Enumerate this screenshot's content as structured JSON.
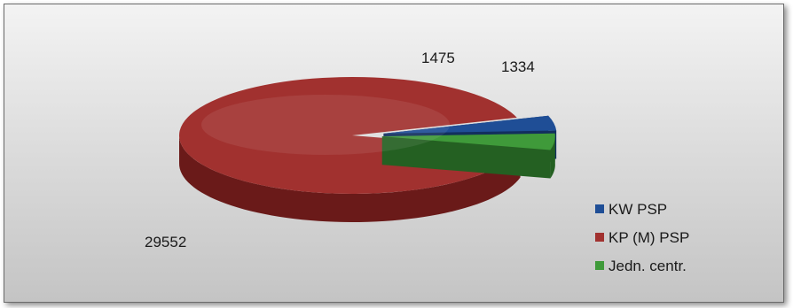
{
  "chart_data": {
    "type": "pie",
    "title": "",
    "legend_position": "right",
    "slices": [
      {
        "label": "KW PSP",
        "value": 1334,
        "color": "#1f4e96",
        "side_color": "#122f5e"
      },
      {
        "label": "KP (M) PSP",
        "value": 29552,
        "color": "#a1312f",
        "side_color": "#6a1a19"
      },
      {
        "label": "Jedn. centr.",
        "value": 1475,
        "color": "#3f9a3a",
        "side_color": "#246022"
      }
    ],
    "data_labels": [
      "1334",
      "29552",
      "1475"
    ]
  }
}
